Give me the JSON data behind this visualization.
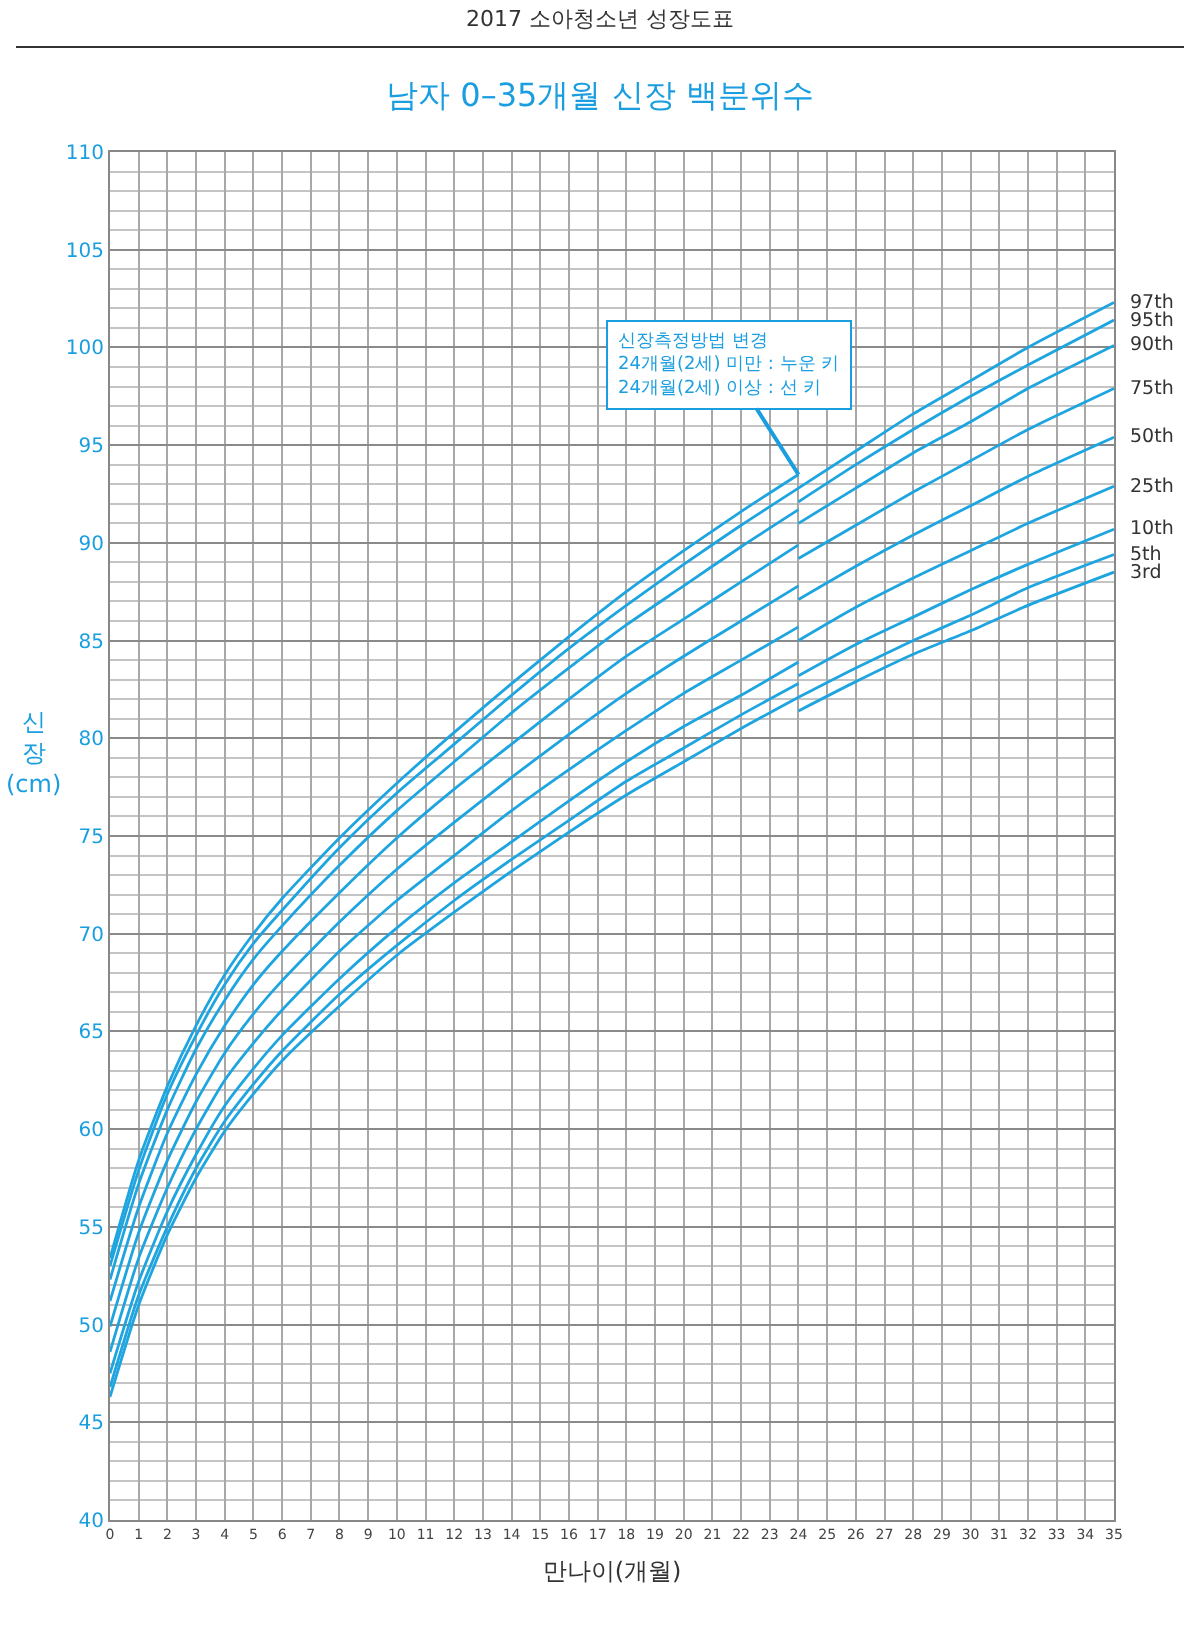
{
  "chart_data": {
    "type": "line",
    "title": "남자 0–35개월 신장 백분위수",
    "xlabel": "만나이(개월)",
    "ylabel": "신\n장\n(cm)",
    "annotations": [
      "2017 소아청소년 성장도표",
      {
        "text": "신장측정방법 변경\n24개월(2세) 미만 : 누운 키\n24개월(2세) 이상 : 선 키",
        "x": 24,
        "y": 93.5
      }
    ],
    "x": [
      0,
      1,
      2,
      3,
      4,
      5,
      6,
      8,
      10,
      12,
      14,
      16,
      18,
      20,
      22,
      24,
      24,
      26,
      28,
      30,
      32,
      35
    ],
    "series": [
      {
        "name": "3rd",
        "color": "#1ea5e0",
        "values": [
          46.3,
          51.0,
          54.6,
          57.5,
          59.9,
          61.8,
          63.5,
          66.3,
          68.9,
          71.1,
          73.2,
          75.2,
          77.1,
          78.8,
          80.5,
          82.1,
          81.4,
          82.9,
          84.3,
          85.5,
          86.8,
          88.5
        ]
      },
      {
        "name": "5th",
        "color": "#1ea5e0",
        "values": [
          46.8,
          51.5,
          55.0,
          58.0,
          60.4,
          62.3,
          64.0,
          66.9,
          69.4,
          71.7,
          73.8,
          75.8,
          77.8,
          79.5,
          81.2,
          82.8,
          82.1,
          83.6,
          85.0,
          86.3,
          87.7,
          89.4
        ]
      },
      {
        "name": "10th",
        "color": "#1ea5e0",
        "values": [
          47.5,
          52.2,
          55.8,
          58.7,
          61.2,
          63.1,
          64.8,
          67.7,
          70.3,
          72.6,
          74.7,
          76.8,
          78.8,
          80.6,
          82.2,
          83.9,
          83.2,
          84.8,
          86.2,
          87.6,
          88.9,
          90.7
        ]
      },
      {
        "name": "25th",
        "color": "#1ea5e0",
        "values": [
          48.6,
          53.4,
          57.0,
          60.0,
          62.5,
          64.4,
          66.1,
          69.1,
          71.7,
          74.0,
          76.3,
          78.4,
          80.4,
          82.3,
          84.0,
          85.7,
          85.0,
          86.7,
          88.2,
          89.6,
          91.0,
          92.9
        ]
      },
      {
        "name": "50th",
        "color": "#1ea5e0",
        "values": [
          49.9,
          54.7,
          58.4,
          61.4,
          63.9,
          65.9,
          67.6,
          70.6,
          73.3,
          75.7,
          78.0,
          80.2,
          82.3,
          84.2,
          86.0,
          87.8,
          87.1,
          88.8,
          90.4,
          91.9,
          93.4,
          95.4
        ]
      },
      {
        "name": "75th",
        "color": "#1ea5e0",
        "values": [
          51.2,
          56.0,
          59.8,
          62.8,
          65.3,
          67.4,
          69.1,
          72.1,
          74.9,
          77.4,
          79.7,
          82.0,
          84.2,
          86.1,
          88.0,
          89.9,
          89.2,
          90.9,
          92.6,
          94.2,
          95.8,
          97.9
        ]
      },
      {
        "name": "90th",
        "color": "#1ea5e0",
        "values": [
          52.3,
          57.2,
          61.0,
          64.1,
          66.6,
          68.7,
          70.4,
          73.5,
          76.3,
          78.8,
          81.3,
          83.6,
          85.8,
          87.8,
          89.8,
          91.7,
          91.0,
          92.8,
          94.6,
          96.2,
          97.9,
          100.1
        ]
      },
      {
        "name": "95th",
        "color": "#1ea5e0",
        "values": [
          53.0,
          57.9,
          61.8,
          64.8,
          67.4,
          69.5,
          71.2,
          74.4,
          77.2,
          79.7,
          82.2,
          84.6,
          86.8,
          88.9,
          90.9,
          92.8,
          92.1,
          94.0,
          95.8,
          97.5,
          99.1,
          101.4
        ]
      },
      {
        "name": "97th",
        "color": "#1ea5e0",
        "values": [
          53.4,
          58.4,
          62.2,
          65.3,
          67.9,
          70.0,
          71.8,
          74.9,
          77.7,
          80.3,
          82.8,
          85.2,
          87.5,
          89.6,
          91.6,
          93.5,
          92.8,
          94.7,
          96.6,
          98.3,
          100.0,
          102.3
        ]
      }
    ],
    "xlim": [
      0,
      35
    ],
    "xticks": [
      0,
      1,
      2,
      3,
      4,
      5,
      6,
      7,
      8,
      9,
      10,
      11,
      12,
      13,
      14,
      15,
      16,
      17,
      18,
      19,
      20,
      21,
      22,
      23,
      24,
      25,
      26,
      27,
      28,
      29,
      30,
      31,
      32,
      33,
      34,
      35
    ],
    "ylim": [
      40,
      110
    ],
    "yticks": [
      40,
      45,
      50,
      55,
      60,
      65,
      70,
      75,
      80,
      85,
      90,
      95,
      100,
      105,
      110
    ],
    "grid": true,
    "marker": "none",
    "line_style": "solid"
  }
}
